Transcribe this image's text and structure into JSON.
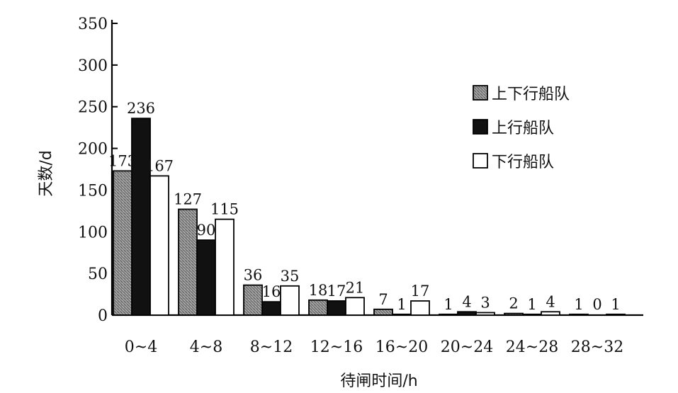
{
  "chart_data": {
    "type": "bar",
    "categories": [
      "0~4",
      "4~8",
      "8~12",
      "12~16",
      "16~20",
      "20~24",
      "24~28",
      "28~32"
    ],
    "series": [
      {
        "name": "上下行船队",
        "values": [
          173,
          127,
          36,
          18,
          7,
          1,
          2,
          1
        ],
        "labels": [
          "173",
          "127",
          "36",
          "18",
          "7",
          "1",
          "2",
          "1"
        ],
        "fill": "pattern-gray"
      },
      {
        "name": "上行船队",
        "values": [
          236,
          90,
          16,
          17,
          1,
          4,
          1,
          0
        ],
        "labels": [
          "236",
          "90",
          "16",
          "17",
          "1",
          "4",
          "1",
          "0"
        ],
        "fill": "#111111"
      },
      {
        "name": "下行船队",
        "values": [
          167,
          115,
          35,
          21,
          17,
          3,
          4,
          1
        ],
        "labels": [
          "167",
          "115",
          "35",
          "21",
          "17",
          "3",
          "4",
          "1"
        ],
        "fill": "#ffffff"
      }
    ],
    "xlabel": "待闸时间/h",
    "ylabel": "天数/d",
    "ylim": [
      0,
      350
    ],
    "yticks": [
      0,
      50,
      100,
      150,
      200,
      250,
      300,
      350
    ],
    "grid": false,
    "legend": "top-right"
  }
}
